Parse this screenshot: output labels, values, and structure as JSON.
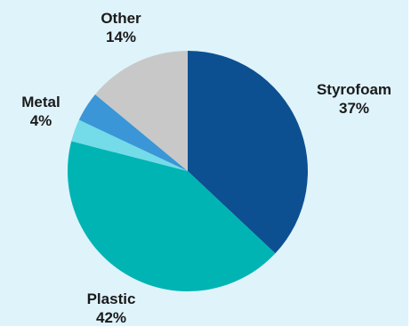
{
  "chart_data": {
    "type": "pie",
    "title": "",
    "slices": [
      {
        "label": "Styrofoam",
        "value": 37,
        "value_label": "37%",
        "color": "#0d5091"
      },
      {
        "label": "Plastic",
        "value": 42,
        "value_label": "42%",
        "color": "#00b4b4"
      },
      {
        "label": "",
        "value": 3,
        "value_label": "",
        "color": "#74dbe8"
      },
      {
        "label": "Metal",
        "value": 4,
        "value_label": "4%",
        "color": "#3a96d6"
      },
      {
        "label": "Other",
        "value": 14,
        "value_label": "14%",
        "color": "#c8c8c8"
      }
    ],
    "start_angle_deg": 0,
    "direction": "clockwise",
    "legend": "none",
    "background": "#dff3fb"
  }
}
